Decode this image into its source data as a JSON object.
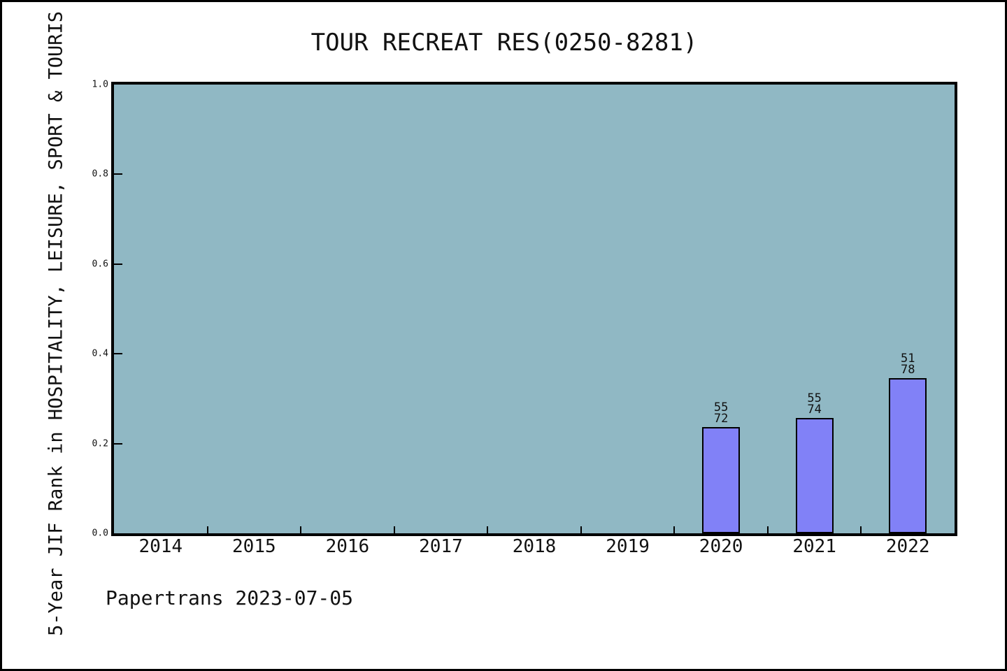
{
  "title": "TOUR RECREAT RES(0250-8281)",
  "footer": {
    "text": "Papertrans 2023-07-05"
  },
  "colors": {
    "plot_bg": "#90B8C4",
    "bar_fill": "#8181F7",
    "bar_border": "#000000",
    "axis": "#000000",
    "text": "#111111"
  },
  "chart_data": {
    "type": "bar",
    "title": "TOUR RECREAT RES(0250-8281)",
    "xlabel": "",
    "ylabel": "5-Year JIF Rank in HOSPITALITY, LEISURE, SPORT & TOURIS",
    "categories": [
      "2014",
      "2015",
      "2016",
      "2017",
      "2018",
      "2019",
      "2020",
      "2021",
      "2022"
    ],
    "y_ticks": [
      "0.0",
      "0.2",
      "0.4",
      "0.6",
      "0.8",
      "1.0"
    ],
    "ylim": [
      0,
      1
    ],
    "grid": false,
    "legend": null,
    "bars": [
      {
        "category": "2020",
        "rank": 55,
        "total": 72,
        "value": 0.2361,
        "label_lines": [
          "55",
          "72"
        ]
      },
      {
        "category": "2021",
        "rank": 55,
        "total": 74,
        "value": 0.2568,
        "label_lines": [
          "55",
          "74"
        ]
      },
      {
        "category": "2022",
        "rank": 51,
        "total": 78,
        "value": 0.3462,
        "label_lines": [
          "51",
          "78"
        ]
      }
    ]
  }
}
